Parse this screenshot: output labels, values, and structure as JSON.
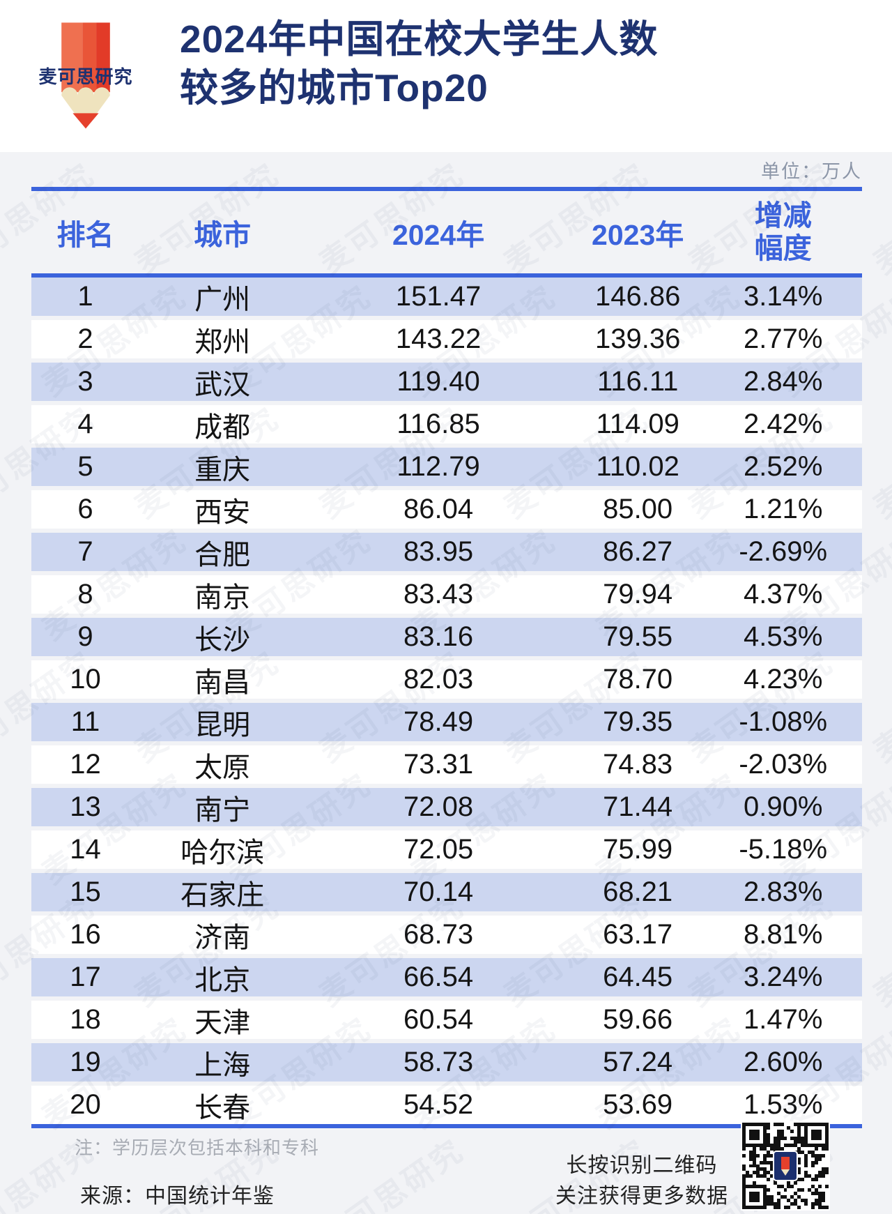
{
  "brand": {
    "name": "麦可思研究"
  },
  "header": {
    "title_line1": "2024年中国在校大学生人数",
    "title_line2": "较多的城市Top20",
    "unit_label": "单位：万人"
  },
  "table": {
    "headers": {
      "rank": "排名",
      "city": "城市",
      "y2024": "2024年",
      "y2023": "2023年",
      "change_line1": "增减",
      "change_line2": "幅度"
    },
    "rows": [
      {
        "rank": "1",
        "city": "广州",
        "y2024": "151.47",
        "y2023": "146.86",
        "change": "3.14%"
      },
      {
        "rank": "2",
        "city": "郑州",
        "y2024": "143.22",
        "y2023": "139.36",
        "change": "2.77%"
      },
      {
        "rank": "3",
        "city": "武汉",
        "y2024": "119.40",
        "y2023": "116.11",
        "change": "2.84%"
      },
      {
        "rank": "4",
        "city": "成都",
        "y2024": "116.85",
        "y2023": "114.09",
        "change": "2.42%"
      },
      {
        "rank": "5",
        "city": "重庆",
        "y2024": "112.79",
        "y2023": "110.02",
        "change": "2.52%"
      },
      {
        "rank": "6",
        "city": "西安",
        "y2024": "86.04",
        "y2023": "85.00",
        "change": "1.21%"
      },
      {
        "rank": "7",
        "city": "合肥",
        "y2024": "83.95",
        "y2023": "86.27",
        "change": "-2.69%"
      },
      {
        "rank": "8",
        "city": "南京",
        "y2024": "83.43",
        "y2023": "79.94",
        "change": "4.37%"
      },
      {
        "rank": "9",
        "city": "长沙",
        "y2024": "83.16",
        "y2023": "79.55",
        "change": "4.53%"
      },
      {
        "rank": "10",
        "city": "南昌",
        "y2024": "82.03",
        "y2023": "78.70",
        "change": "4.23%"
      },
      {
        "rank": "11",
        "city": "昆明",
        "y2024": "78.49",
        "y2023": "79.35",
        "change": "-1.08%"
      },
      {
        "rank": "12",
        "city": "太原",
        "y2024": "73.31",
        "y2023": "74.83",
        "change": "-2.03%"
      },
      {
        "rank": "13",
        "city": "南宁",
        "y2024": "72.08",
        "y2023": "71.44",
        "change": "0.90%"
      },
      {
        "rank": "14",
        "city": "哈尔滨",
        "y2024": "72.05",
        "y2023": "75.99",
        "change": "-5.18%"
      },
      {
        "rank": "15",
        "city": "石家庄",
        "y2024": "70.14",
        "y2023": "68.21",
        "change": "2.83%"
      },
      {
        "rank": "16",
        "city": "济南",
        "y2024": "68.73",
        "y2023": "63.17",
        "change": "8.81%"
      },
      {
        "rank": "17",
        "city": "北京",
        "y2024": "66.54",
        "y2023": "64.45",
        "change": "3.24%"
      },
      {
        "rank": "18",
        "city": "天津",
        "y2024": "60.54",
        "y2023": "59.66",
        "change": "1.47%"
      },
      {
        "rank": "19",
        "city": "上海",
        "y2024": "58.73",
        "y2023": "57.24",
        "change": "2.60%"
      },
      {
        "rank": "20",
        "city": "长春",
        "y2024": "54.52",
        "y2023": "53.69",
        "change": "1.53%"
      }
    ]
  },
  "footer": {
    "note": "注：学历层次包括本科和专科",
    "source": "来源：中国统计年鉴",
    "qr_caption_line1": "长按识别二维码",
    "qr_caption_line2": "关注获得更多数据"
  },
  "watermark": {
    "text": "麦可思研究"
  },
  "colors": {
    "accent_blue": "#3B63DC",
    "title_navy": "#1E3270",
    "row_band": "#CCD6F0",
    "panel_bg": "#F2F3F6",
    "muted_gray": "#8C96A8",
    "logo_red": "#E5402C",
    "logo_orange": "#EF7050",
    "logo_cream": "#EFE3BE"
  },
  "chart_data": {
    "type": "table",
    "title": "2024年中国在校大学生人数较多的城市Top20",
    "unit": "万人",
    "columns": [
      "排名",
      "城市",
      "2024年",
      "2023年",
      "增减幅度"
    ],
    "categories": [
      "广州",
      "郑州",
      "武汉",
      "成都",
      "重庆",
      "西安",
      "合肥",
      "南京",
      "长沙",
      "南昌",
      "昆明",
      "太原",
      "南宁",
      "哈尔滨",
      "石家庄",
      "济南",
      "北京",
      "天津",
      "上海",
      "长春"
    ],
    "series": [
      {
        "name": "2024年",
        "values": [
          151.47,
          143.22,
          119.4,
          116.85,
          112.79,
          86.04,
          83.95,
          83.43,
          83.16,
          82.03,
          78.49,
          73.31,
          72.08,
          72.05,
          70.14,
          68.73,
          66.54,
          60.54,
          58.73,
          54.52
        ]
      },
      {
        "name": "2023年",
        "values": [
          146.86,
          139.36,
          116.11,
          114.09,
          110.02,
          85.0,
          86.27,
          79.94,
          79.55,
          78.7,
          79.35,
          74.83,
          71.44,
          75.99,
          68.21,
          63.17,
          64.45,
          59.66,
          57.24,
          53.69
        ]
      },
      {
        "name": "增减幅度(%)",
        "values": [
          3.14,
          2.77,
          2.84,
          2.42,
          2.52,
          1.21,
          -2.69,
          4.37,
          4.53,
          4.23,
          -1.08,
          -2.03,
          0.9,
          -5.18,
          2.83,
          8.81,
          3.24,
          1.47,
          2.6,
          1.53
        ]
      }
    ],
    "note": "学历层次包括本科和专科",
    "source": "中国统计年鉴"
  }
}
